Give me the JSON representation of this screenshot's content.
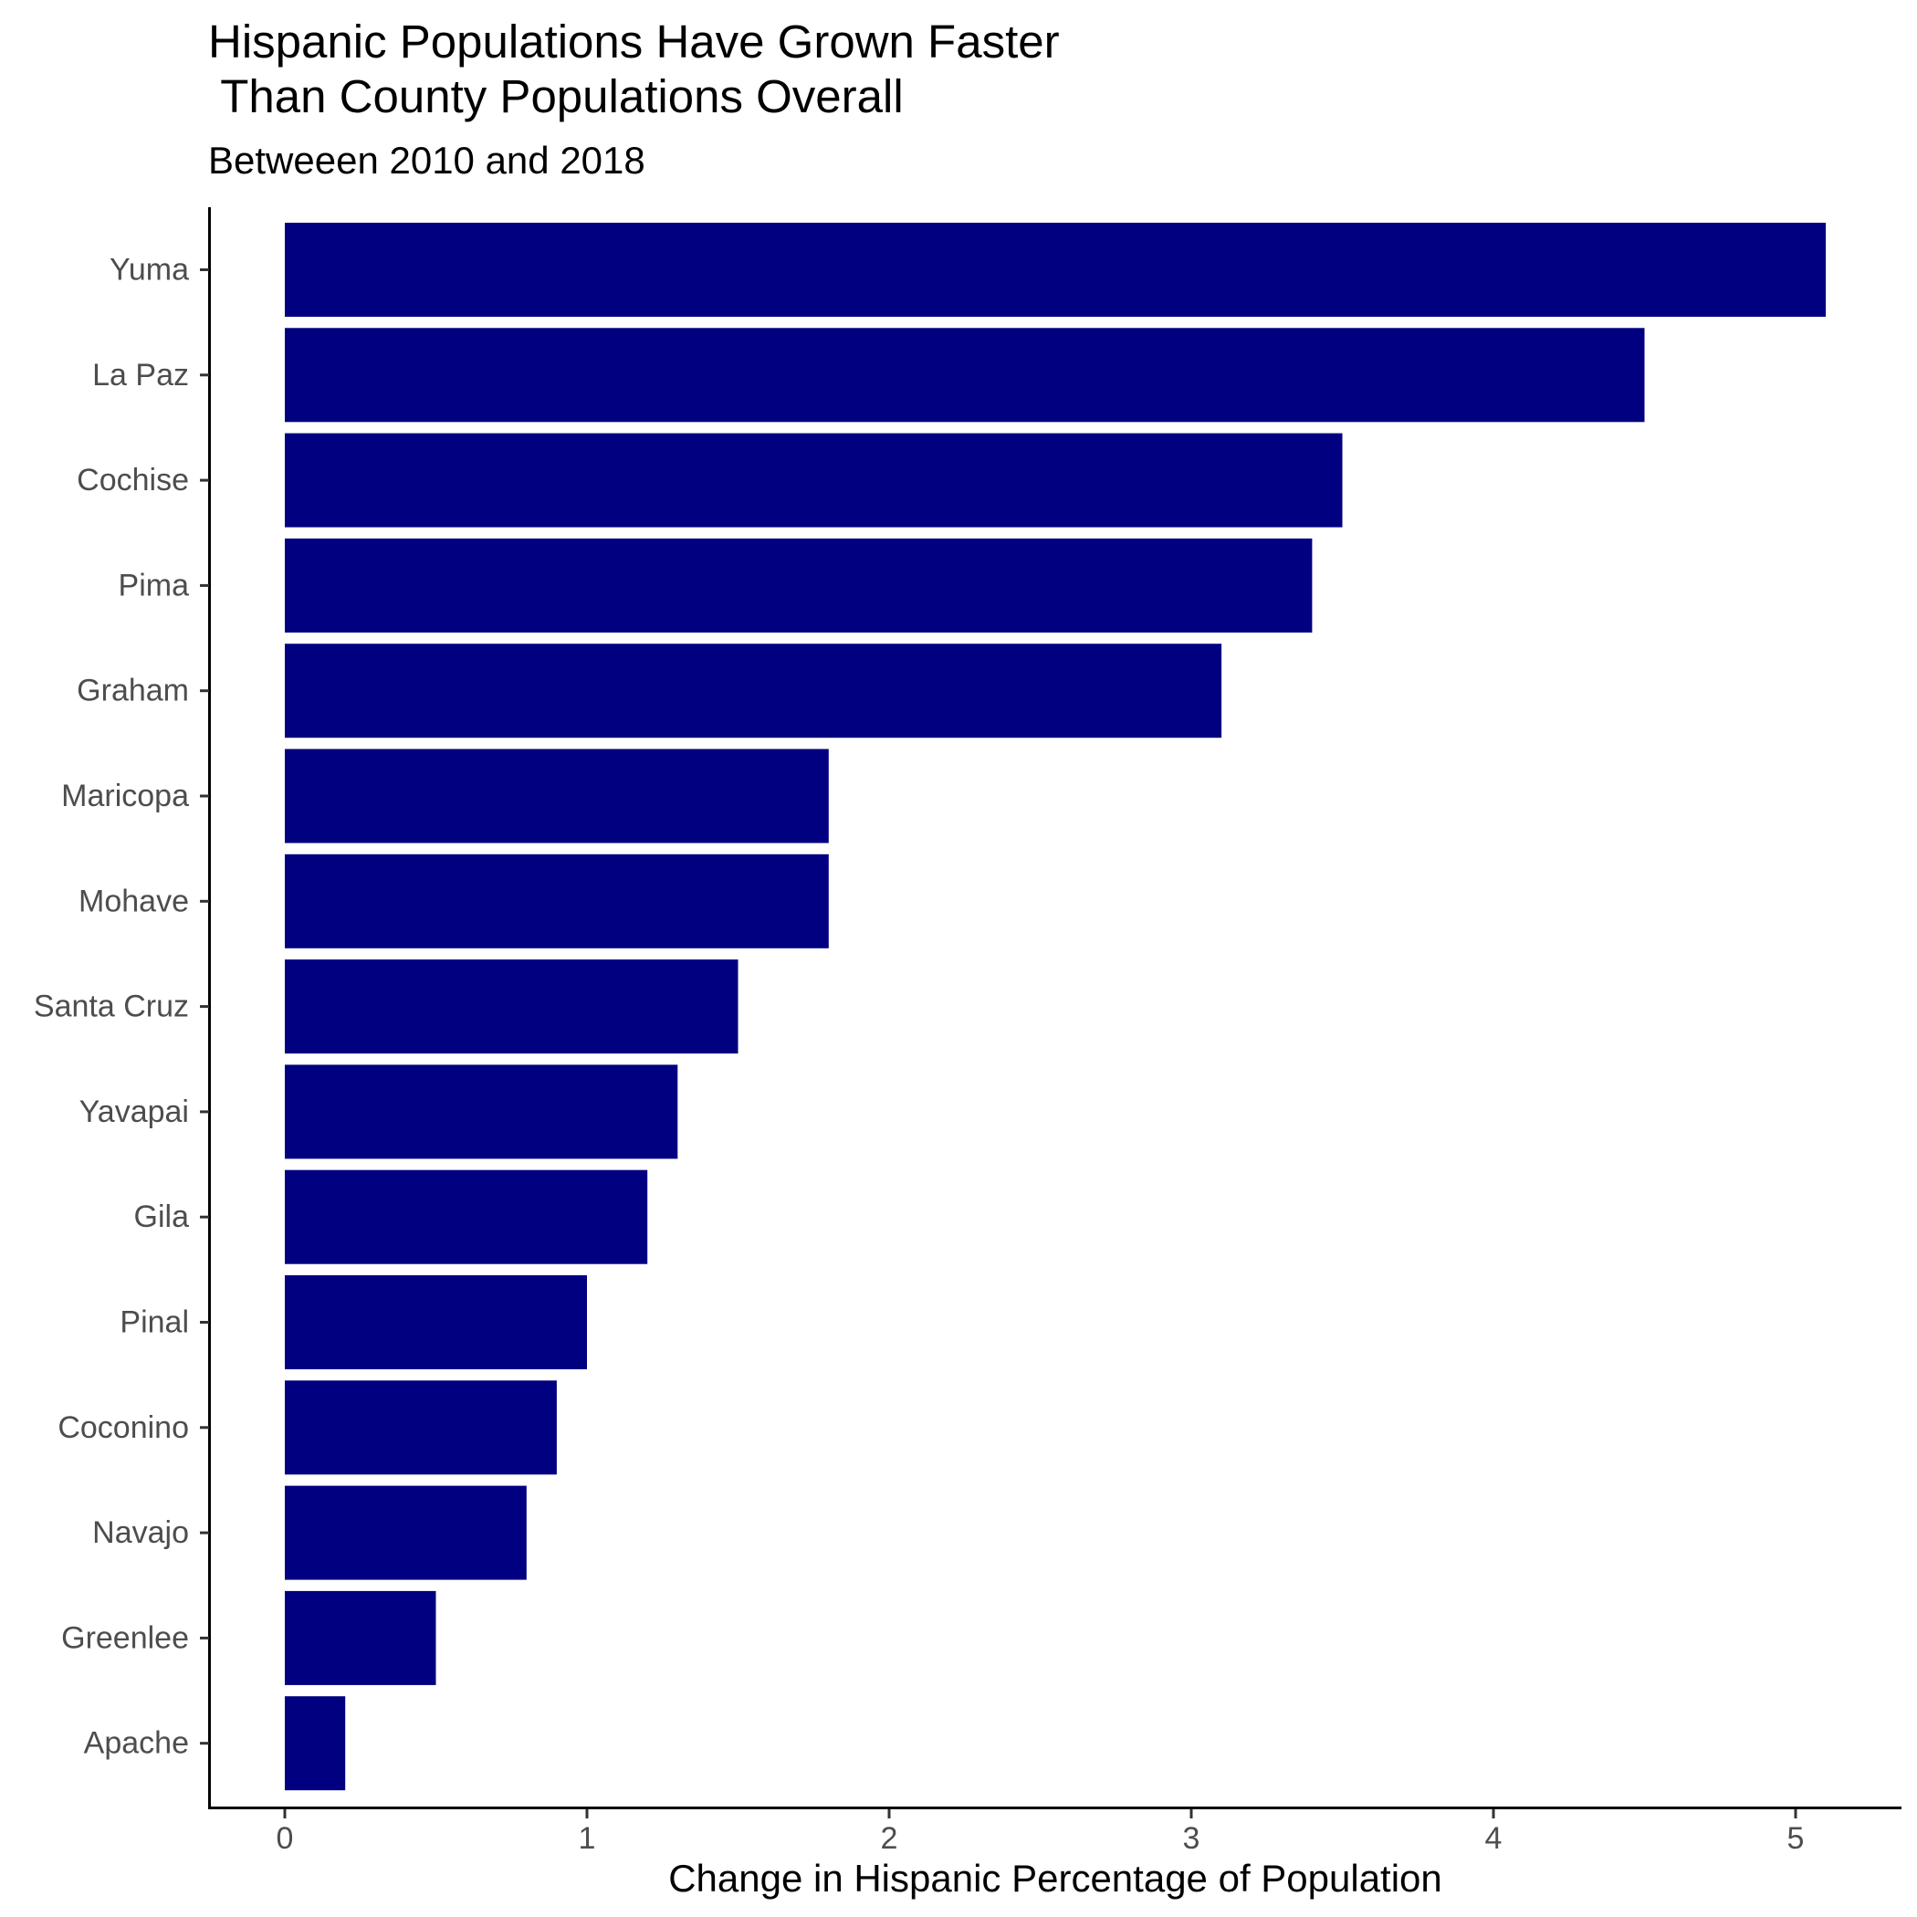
{
  "chart_data": {
    "type": "bar",
    "orientation": "horizontal",
    "title": "Hispanic Populations Have Grown Faster\n Than County Populations Overall",
    "subtitle": "Betweeen 2010 and 2018",
    "xlabel": "Change in Hispanic Percentage of Population",
    "ylabel": "",
    "categories": [
      "Yuma",
      "La Paz",
      "Cochise",
      "Pima",
      "Graham",
      "Maricopa",
      "Mohave",
      "Santa Cruz",
      "Yavapai",
      "Gila",
      "Pinal",
      "Coconino",
      "Navajo",
      "Greenlee",
      "Apache"
    ],
    "values": [
      5.1,
      4.5,
      3.5,
      3.4,
      3.1,
      1.8,
      1.8,
      1.5,
      1.3,
      1.2,
      1.0,
      0.9,
      0.8,
      0.5,
      0.2
    ],
    "xlim": [
      0,
      5
    ],
    "xticks": [
      "0",
      "1",
      "2",
      "3",
      "4",
      "5"
    ],
    "bar_color": "#000080",
    "grid": false,
    "legend": "none"
  }
}
